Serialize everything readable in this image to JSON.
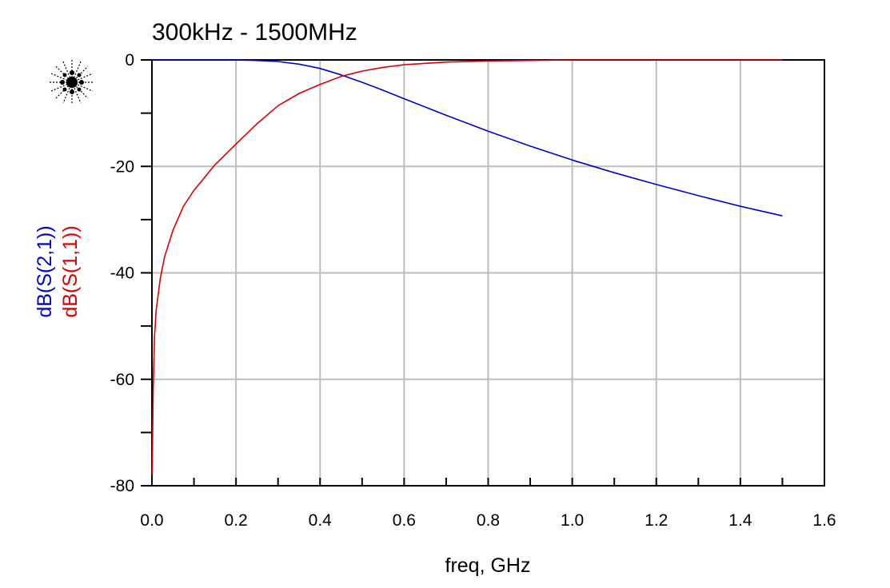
{
  "chart_data": {
    "type": "line",
    "title": "300kHz - 1500MHz",
    "xlabel": "freq, GHz",
    "xlim": [
      0,
      1.6
    ],
    "ylim": [
      -80,
      0
    ],
    "x_ticks": [
      0.0,
      0.2,
      0.4,
      0.6,
      0.8,
      1.0,
      1.2,
      1.4,
      1.6
    ],
    "x_tick_labels": [
      "0.0",
      "0.2",
      "0.4",
      "0.6",
      "0.8",
      "1.0",
      "1.2",
      "1.4",
      "1.6"
    ],
    "y_ticks": [
      0,
      -20,
      -40,
      -60,
      -80
    ],
    "y_tick_labels": [
      "0",
      "-20",
      "-40",
      "-60",
      "-80"
    ],
    "grid": true,
    "series": [
      {
        "name": "dB(S(2,1))",
        "color": "#0000cc",
        "x": [
          0.0003,
          0.05,
          0.1,
          0.15,
          0.2,
          0.25,
          0.3,
          0.35,
          0.4,
          0.45,
          0.5,
          0.55,
          0.6,
          0.7,
          0.8,
          0.9,
          1.0,
          1.1,
          1.2,
          1.3,
          1.4,
          1.5
        ],
        "y": [
          0,
          0,
          0,
          0,
          0,
          -0.1,
          -0.3,
          -0.8,
          -1.6,
          -2.8,
          -4.2,
          -5.7,
          -7.3,
          -10.4,
          -13.4,
          -16.2,
          -18.8,
          -21.2,
          -23.4,
          -25.5,
          -27.5,
          -29.3
        ]
      },
      {
        "name": "dB(S(1,1))",
        "color": "#dd0000",
        "x": [
          0.0003,
          0.003,
          0.006,
          0.01,
          0.02,
          0.03,
          0.05,
          0.075,
          0.1,
          0.15,
          0.2,
          0.25,
          0.3,
          0.35,
          0.4,
          0.45,
          0.5,
          0.55,
          0.6,
          0.7,
          0.8,
          0.9,
          1.0,
          1.1,
          1.2,
          1.3,
          1.4,
          1.5
        ],
        "y": [
          -78,
          -62,
          -52,
          -47,
          -41,
          -37,
          -32,
          -27.5,
          -24.5,
          -19.7,
          -15.8,
          -12.0,
          -8.6,
          -6.3,
          -4.6,
          -3.1,
          -2.1,
          -1.4,
          -0.9,
          -0.4,
          -0.2,
          -0.1,
          0,
          0,
          0,
          0,
          0,
          0
        ]
      }
    ]
  },
  "logo": {
    "icon": "starburst-logo-icon"
  }
}
